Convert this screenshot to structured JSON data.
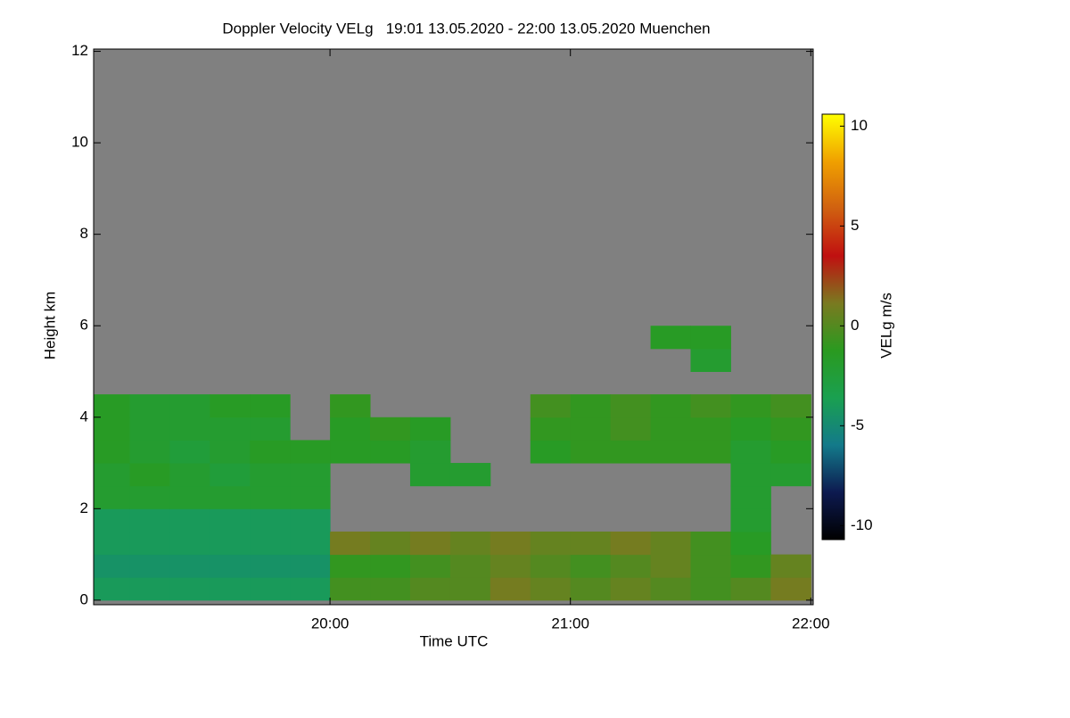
{
  "chart_data": {
    "type": "heatmap",
    "title": "Doppler Velocity VELg   19:01 13.05.2020 - 22:00 13.05.2020 Muenchen",
    "x_label": "Time UTC",
    "y_label": "Height km",
    "colorbar_label": "VELg m/s",
    "x": [
      19.0833,
      19.25,
      19.4167,
      19.5833,
      19.75,
      19.9167,
      20.0833,
      20.25,
      20.4167,
      20.5833,
      20.75,
      20.9167,
      21.0833,
      21.25,
      21.4167,
      21.5833,
      21.75,
      21.9167
    ],
    "y": [
      0.25,
      0.75,
      1.25,
      1.75,
      2.25,
      2.75,
      3.25,
      3.75,
      4.25,
      4.75,
      5.25,
      5.75
    ],
    "z": [
      [
        -4,
        -4,
        -4,
        -4,
        -4,
        -4,
        -0.5,
        -0.5,
        0,
        0,
        1,
        0.5,
        0,
        0.5,
        0,
        -0.5,
        0,
        1
      ],
      [
        -4.5,
        -4.5,
        -4.5,
        -4.5,
        -4.5,
        -4.5,
        -1,
        -1,
        -0.5,
        0,
        0.5,
        0,
        -0.5,
        0,
        0.5,
        -0.5,
        -1,
        0.5
      ],
      [
        -4,
        -4,
        -4,
        -4,
        -4,
        -4,
        1,
        0.5,
        1,
        0.5,
        1,
        0.5,
        0.5,
        1,
        0.5,
        -0.5,
        -1.5,
        null
      ],
      [
        -4,
        -4,
        -4,
        -4,
        -4,
        -4,
        null,
        null,
        null,
        null,
        null,
        null,
        null,
        null,
        null,
        null,
        -2,
        null
      ],
      [
        -2,
        -2,
        -2,
        -2,
        -2,
        -2,
        null,
        null,
        null,
        null,
        null,
        null,
        null,
        null,
        null,
        null,
        -2,
        null
      ],
      [
        -2,
        -1.5,
        -2,
        -2.5,
        -2,
        -2,
        null,
        null,
        -2,
        -2,
        null,
        null,
        null,
        null,
        null,
        null,
        -2,
        -2
      ],
      [
        -1.5,
        -2,
        -2.5,
        -2,
        -1.5,
        -1.5,
        -1.5,
        -1.5,
        -2,
        null,
        null,
        -1.5,
        -1,
        -1,
        -1,
        -1,
        -2,
        -1.5
      ],
      [
        -1.5,
        -2,
        -2,
        -2,
        -2,
        null,
        -1.5,
        -1,
        -1.5,
        null,
        null,
        -1,
        -1,
        -0.5,
        -1,
        -1,
        -1.5,
        -1
      ],
      [
        -1.5,
        -2,
        -2,
        -1.5,
        -1.5,
        null,
        -1,
        null,
        null,
        null,
        null,
        -0.5,
        -1,
        -0.5,
        -1,
        -0.5,
        -1,
        -0.5
      ],
      [
        null,
        null,
        null,
        null,
        null,
        null,
        null,
        null,
        null,
        null,
        null,
        null,
        null,
        null,
        null,
        null,
        null,
        null
      ],
      [
        null,
        null,
        null,
        null,
        null,
        null,
        null,
        null,
        null,
        null,
        null,
        null,
        null,
        null,
        null,
        -2,
        null,
        null
      ],
      [
        null,
        null,
        null,
        null,
        null,
        null,
        null,
        null,
        null,
        null,
        null,
        null,
        null,
        null,
        -1.5,
        -1.5,
        null,
        null
      ]
    ],
    "xlim": [
      19.0167,
      22.01
    ],
    "xticks": [
      {
        "value": 20,
        "label": "20:00"
      },
      {
        "value": 21,
        "label": "21:00"
      },
      {
        "value": 22,
        "label": "22:00"
      }
    ],
    "ylim": [
      -0.1,
      12.05
    ],
    "yticks": [
      0,
      2,
      4,
      6,
      8,
      10,
      12
    ],
    "clim": [
      -10.7,
      10.6
    ],
    "cticks": [
      -10,
      -5,
      0,
      5,
      10
    ],
    "colormap": [
      "#000000",
      "#0d1a50",
      "#137a8a",
      "#1aa050",
      "#2a9a20",
      "#7a7a20",
      "#c01010",
      "#d06010",
      "#f0a000",
      "#ffff00"
    ],
    "missing_color": "#808080"
  }
}
